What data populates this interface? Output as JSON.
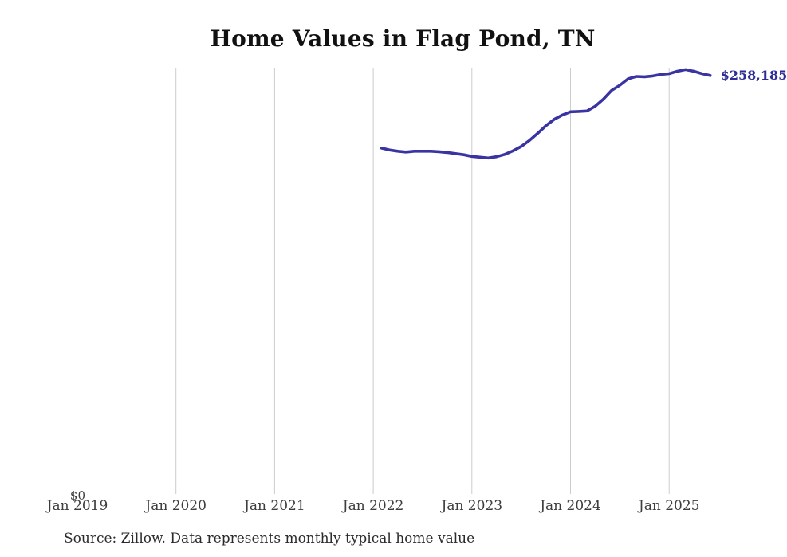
{
  "page": {
    "source_note": "Source: Zillow. Data represents monthly typical home value"
  },
  "chart_data": {
    "type": "line",
    "title": "Home Values in Flag Pond, TN",
    "series_name": "Monthly typical home value",
    "x": [
      "Feb 2022",
      "Mar 2022",
      "Apr 2022",
      "May 2022",
      "Jun 2022",
      "Jul 2022",
      "Aug 2022",
      "Sep 2022",
      "Oct 2022",
      "Nov 2022",
      "Dec 2022",
      "Jan 2023",
      "Feb 2023",
      "Mar 2023",
      "Apr 2023",
      "May 2023",
      "Jun 2023",
      "Jul 2023",
      "Aug 2023",
      "Sep 2023",
      "Oct 2023",
      "Nov 2023",
      "Dec 2023",
      "Jan 2024",
      "Feb 2024",
      "Mar 2024",
      "Apr 2024",
      "May 2024",
      "Jun 2024",
      "Jul 2024",
      "Aug 2024",
      "Sep 2024",
      "Oct 2024",
      "Nov 2024",
      "Dec 2024",
      "Jan 2025",
      "Feb 2025",
      "Mar 2025",
      "Apr 2025",
      "May 2025",
      "Jun 2025"
    ],
    "values": [
      213400,
      212200,
      211500,
      211000,
      211500,
      211500,
      211500,
      211200,
      210700,
      210000,
      209300,
      208300,
      207800,
      207300,
      208100,
      209500,
      211700,
      214400,
      218100,
      222500,
      227200,
      231100,
      233800,
      235800,
      236000,
      236300,
      239200,
      243600,
      249000,
      252200,
      256100,
      257600,
      257400,
      257900,
      258800,
      259300,
      260800,
      261800,
      260800,
      259300,
      258185
    ],
    "x_ticks": [
      {
        "label": "Jan 2019",
        "gridline": false
      },
      {
        "label": "Jan 2020",
        "gridline": true
      },
      {
        "label": "Jan 2021",
        "gridline": true
      },
      {
        "label": "Jan 2022",
        "gridline": true
      },
      {
        "label": "Jan 2023",
        "gridline": true
      },
      {
        "label": "Jan 2024",
        "gridline": true
      },
      {
        "label": "Jan 2025",
        "gridline": true
      }
    ],
    "y_tick_label": "$0",
    "ylim": [
      0,
      263000
    ],
    "end_label": "$258,185",
    "end_value": 258185,
    "grid": "vertical-only",
    "legend": "none",
    "line_color": "#3a34a3",
    "gridline_color": "#cccccc",
    "end_label_color": "#2e2b96"
  }
}
